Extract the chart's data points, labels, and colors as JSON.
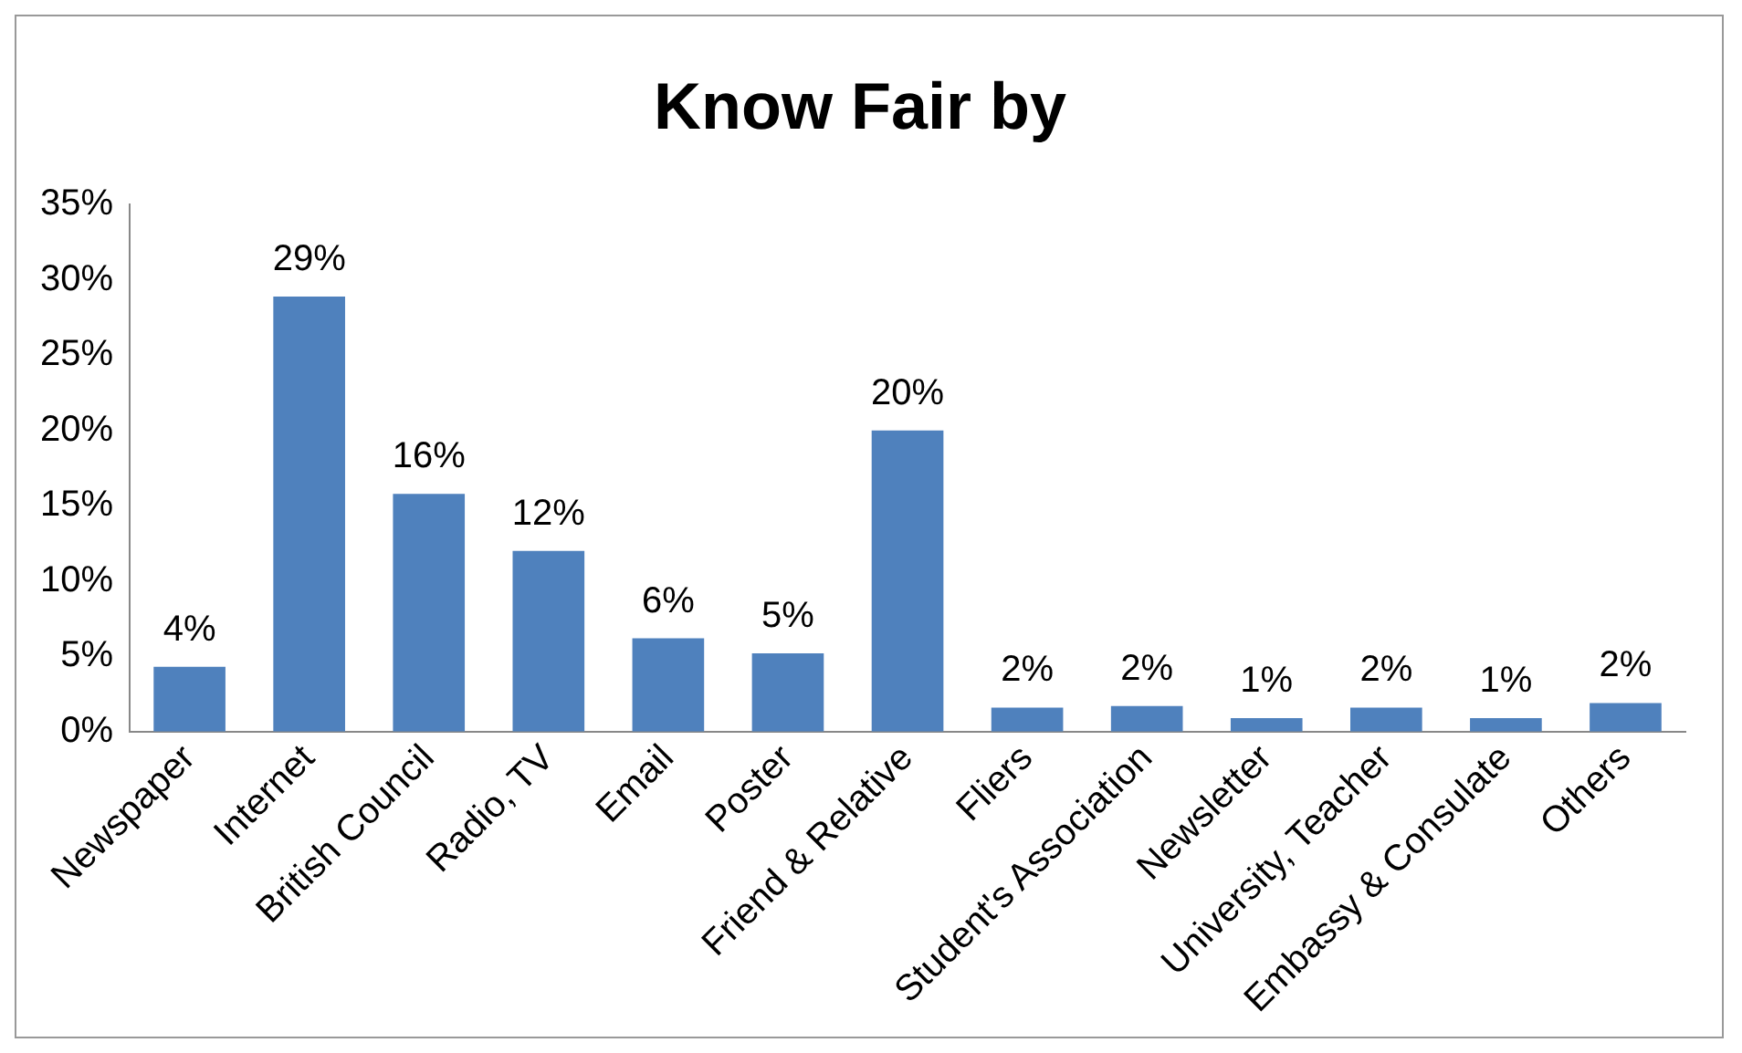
{
  "chart_data": {
    "type": "bar",
    "title": "Know Fair by",
    "categories": [
      "Newspaper",
      "Internet",
      "British Council",
      "Radio, TV",
      "Email",
      "Poster",
      "Friend & Relative",
      "Fliers",
      "Student's Association",
      "Newsletter",
      "University, Teacher",
      "Embassy & Consulate",
      "Others"
    ],
    "values": [
      4.3,
      28.9,
      15.8,
      12.0,
      6.2,
      5.2,
      20.0,
      1.6,
      1.7,
      0.9,
      1.6,
      0.9,
      1.9
    ],
    "value_labels": [
      "4%",
      "29%",
      "16%",
      "12%",
      "6%",
      "5%",
      "20%",
      "2%",
      "2%",
      "1%",
      "2%",
      "1%",
      "2%"
    ],
    "color": "#4f81bd",
    "ylim": [
      0,
      35
    ],
    "yticks": [
      {
        "value": 0,
        "label": "0%"
      },
      {
        "value": 5,
        "label": "5%"
      },
      {
        "value": 10,
        "label": "10%"
      },
      {
        "value": 15,
        "label": "15%"
      },
      {
        "value": 20,
        "label": "20%"
      },
      {
        "value": 25,
        "label": "25%"
      },
      {
        "value": 30,
        "label": "30%"
      },
      {
        "value": 35,
        "label": "35%"
      }
    ],
    "grid": false,
    "legend": false
  }
}
